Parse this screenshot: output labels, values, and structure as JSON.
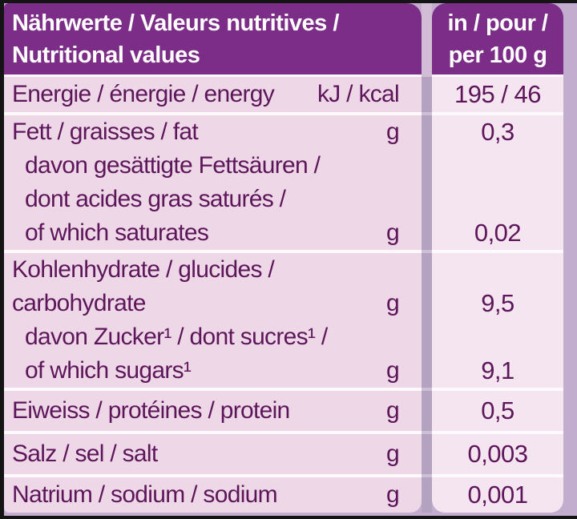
{
  "colors": {
    "header_bg": "#7c2d87",
    "header_text": "#ffffff",
    "label_cell_bg": "#eed8e8",
    "value_cell_bg": "#f5e5f0",
    "text": "#5d165a",
    "separator": "#fdfafc",
    "column_gap": "#b3a3c1",
    "outer_background": "#c2adcf",
    "frame": "#141414"
  },
  "header": {
    "left_line1": "Nährwerte / Valeurs nutritives /",
    "left_line2": "Nutritional values",
    "right_line1": "in / pour /",
    "right_line2": "per 100 g"
  },
  "rows": [
    {
      "name": "energy",
      "lines": [
        {
          "label": "Energie / énergie / energy",
          "unit": "kJ / kcal",
          "value": "195 / 46"
        }
      ]
    },
    {
      "name": "fat",
      "lines": [
        {
          "label": "Fett / graisses / fat",
          "unit": "g",
          "value": "0,3"
        },
        {
          "label": "davon gesättigte Fettsäuren /"
        },
        {
          "label": "dont acides gras saturés /"
        },
        {
          "label": "of which saturates",
          "unit": "g",
          "value": "0,02"
        }
      ]
    },
    {
      "name": "carbohydrate",
      "lines": [
        {
          "label": "Kohlenhydrate / glucides /"
        },
        {
          "label": "carbohydrate",
          "unit": "g",
          "value": "9,5"
        },
        {
          "label": "davon Zucker¹ / dont sucres¹ /"
        },
        {
          "label": "of which sugars¹",
          "unit": "g",
          "value": "9,1"
        }
      ]
    },
    {
      "name": "protein",
      "lines": [
        {
          "label": "Eiweiss / protéines / protein",
          "unit": "g",
          "value": "0,5"
        }
      ]
    },
    {
      "name": "salt",
      "lines": [
        {
          "label": "Salz / sel / salt",
          "unit": "g",
          "value": "0,003"
        }
      ]
    },
    {
      "name": "sodium",
      "lines": [
        {
          "label": "Natrium / sodium / sodium",
          "unit": "g",
          "value": "0,001"
        }
      ]
    }
  ]
}
